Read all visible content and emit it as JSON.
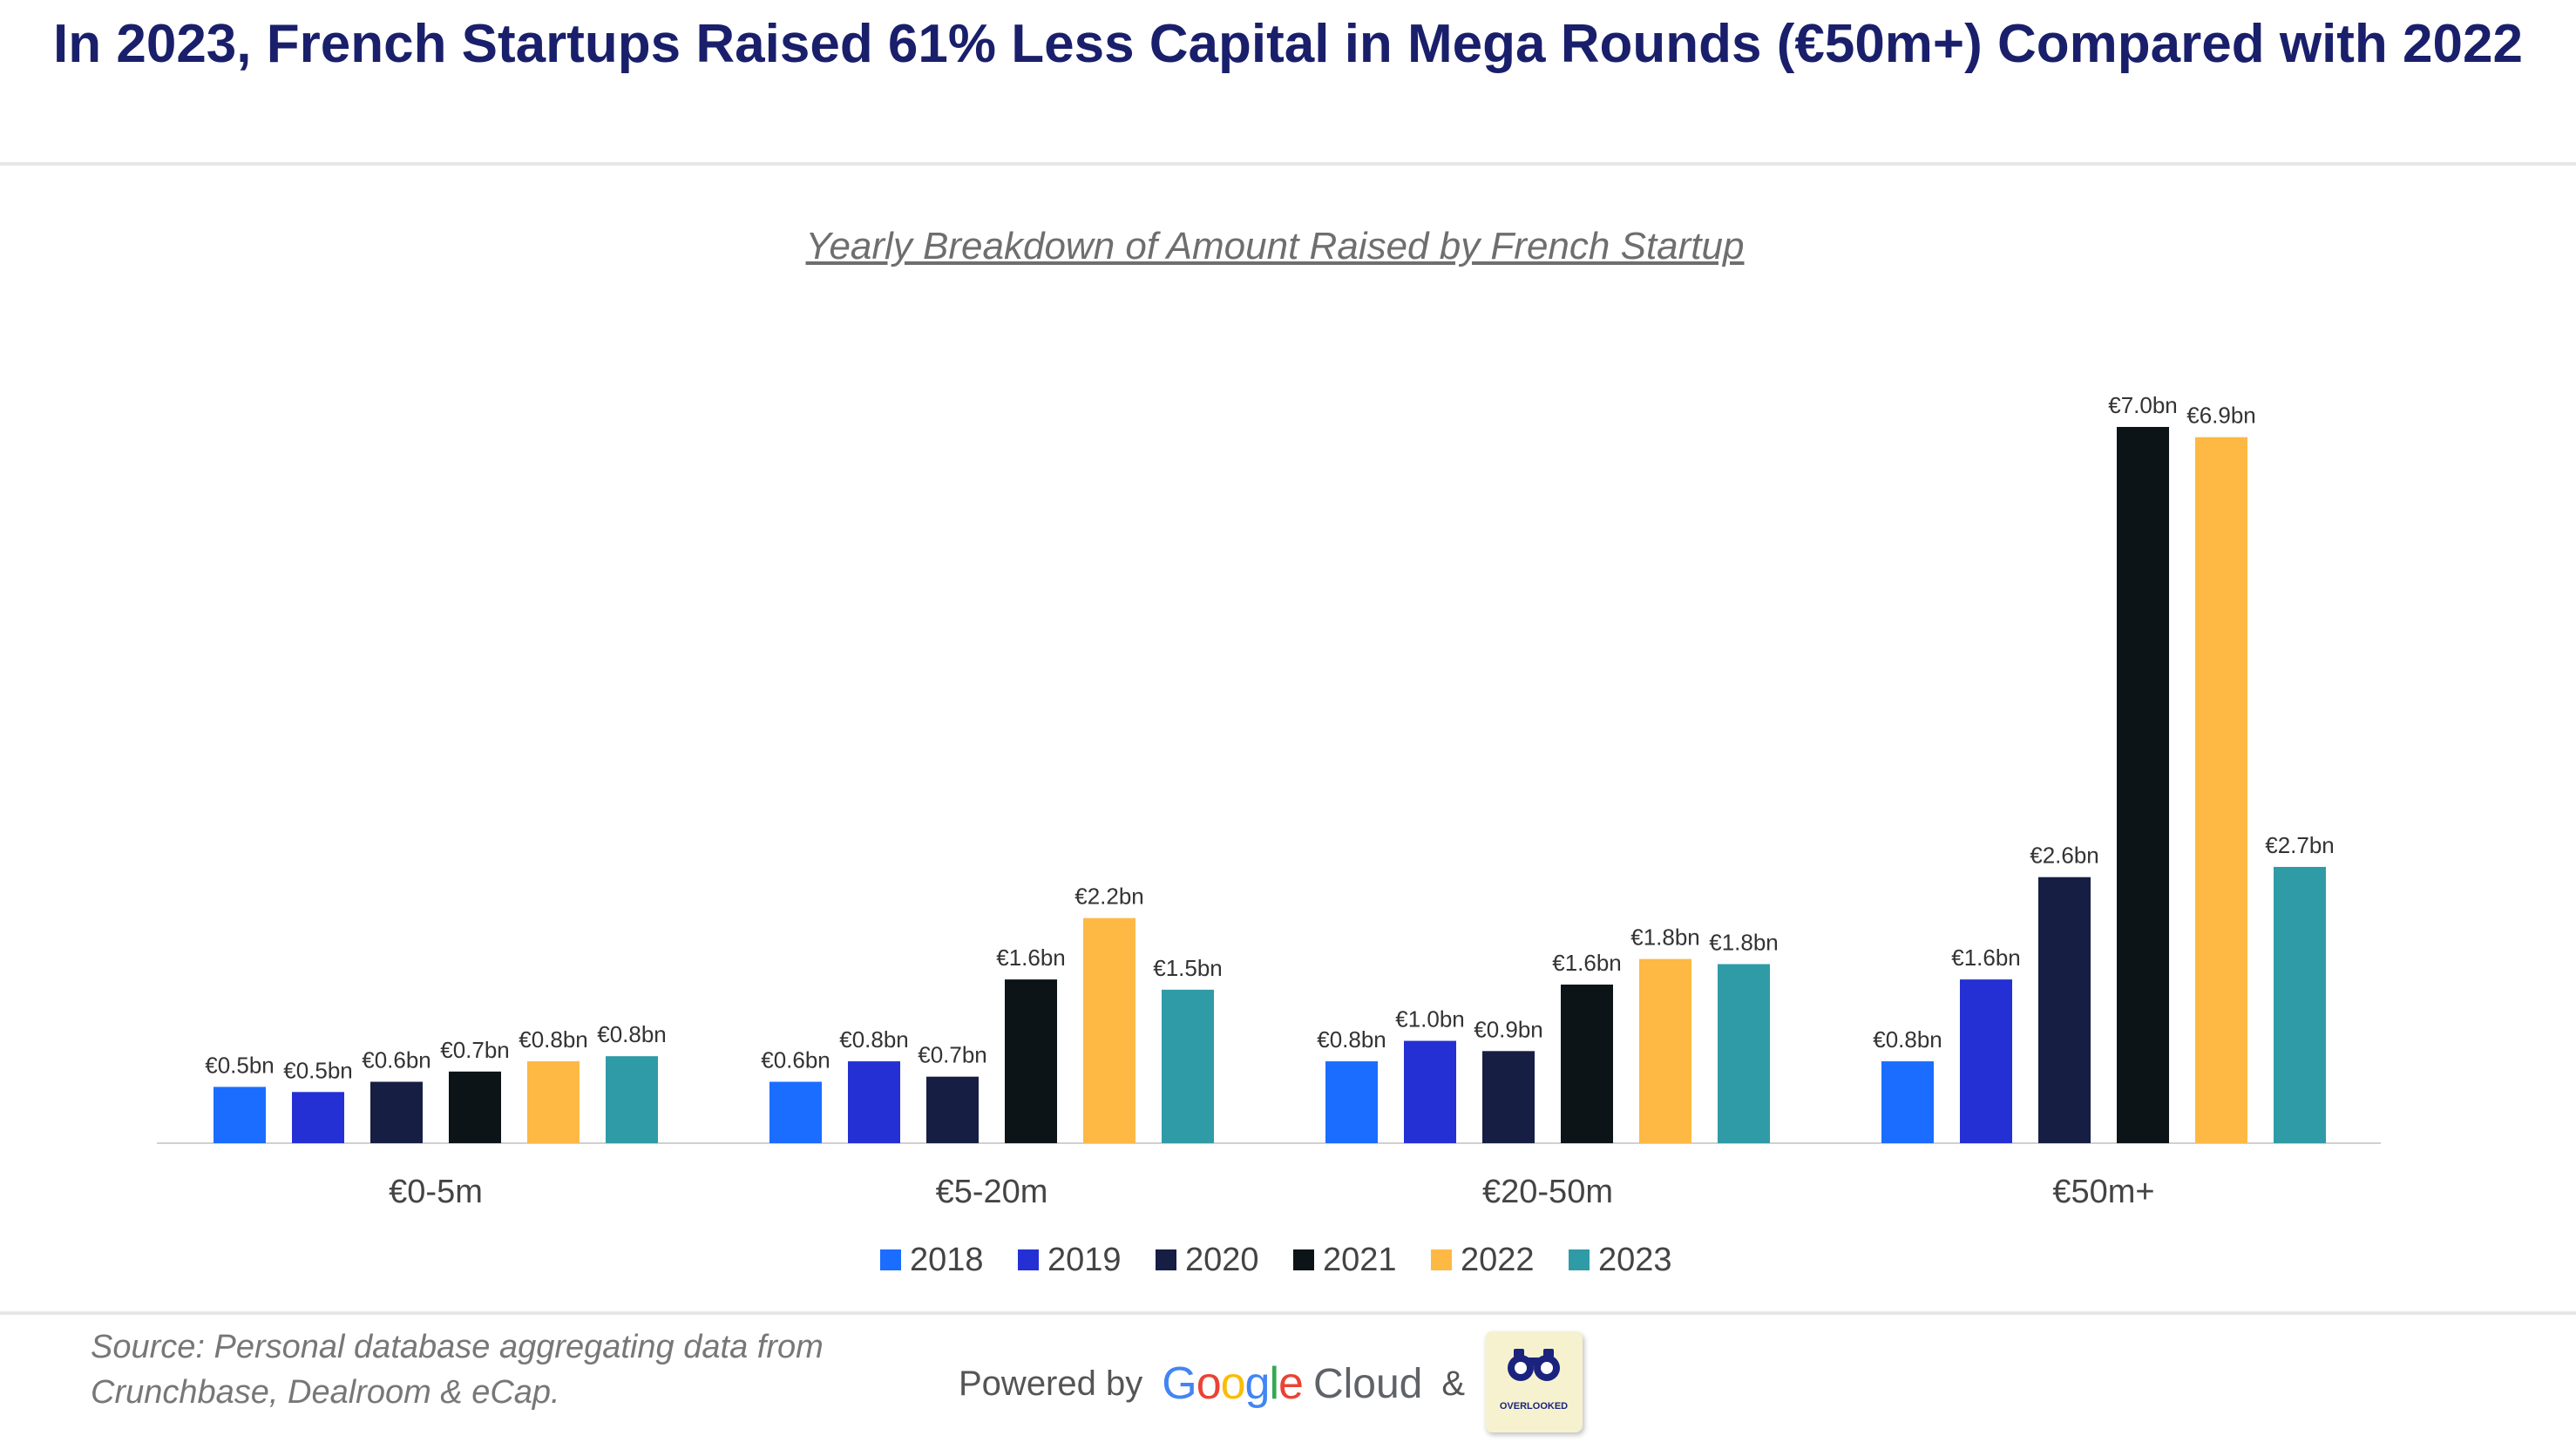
{
  "header": {
    "title": "In 2023, French Startups Raised 61% Less Capital in Mega Rounds (€50m+) Compared with 2022",
    "subtitle": "Yearly Breakdown of Amount Raised by French Startup"
  },
  "chart_data": {
    "type": "bar",
    "categories": [
      "€0-5m",
      "€5-20m",
      "€20-50m",
      "€50m+"
    ],
    "series": [
      {
        "name": "2018",
        "color": "#1a6dff",
        "values": [
          0.55,
          0.6,
          0.8,
          0.8
        ],
        "labels": [
          "€0.5bn",
          "€0.6bn",
          "€0.8bn",
          "€0.8bn"
        ]
      },
      {
        "name": "2019",
        "color": "#2430d4",
        "values": [
          0.5,
          0.8,
          1.0,
          1.6
        ],
        "labels": [
          "€0.5bn",
          "€0.8bn",
          "€1.0bn",
          "€1.6bn"
        ]
      },
      {
        "name": "2020",
        "color": "#161e44",
        "values": [
          0.6,
          0.65,
          0.9,
          2.6
        ],
        "labels": [
          "€0.6bn",
          "€0.7bn",
          "€0.9bn",
          "€2.6bn"
        ]
      },
      {
        "name": "2021",
        "color": "#0c1417",
        "values": [
          0.7,
          1.6,
          1.55,
          7.0
        ],
        "labels": [
          "€0.7bn",
          "€1.6bn",
          "€1.6bn",
          "€7.0bn"
        ]
      },
      {
        "name": "2022",
        "color": "#fdb944",
        "values": [
          0.8,
          2.2,
          1.8,
          6.9
        ],
        "labels": [
          "€0.8bn",
          "€2.2bn",
          "€1.8bn",
          "€6.9bn"
        ]
      },
      {
        "name": "2023",
        "color": "#2f9ba6",
        "values": [
          0.85,
          1.5,
          1.75,
          2.7
        ],
        "labels": [
          "€0.8bn",
          "€1.5bn",
          "€1.8bn",
          "€2.7bn"
        ]
      }
    ],
    "ylim": [
      0,
      7.5
    ],
    "grid": false,
    "legend": "bottom",
    "xlabel": "",
    "ylabel": ""
  },
  "footer": {
    "source": "Source: Personal database aggregating data from Crunchbase, Dealroom & eCap.",
    "powered_by": "Powered by",
    "google_letters": [
      {
        "ch": "G",
        "color": "#4285F4"
      },
      {
        "ch": "o",
        "color": "#EA4335"
      },
      {
        "ch": "o",
        "color": "#FBBC05"
      },
      {
        "ch": "g",
        "color": "#4285F4"
      },
      {
        "ch": "l",
        "color": "#34A853"
      },
      {
        "ch": "e",
        "color": "#EA4335"
      }
    ],
    "cloud": "Cloud",
    "ampersand": "&",
    "badge_text": "OVERLOOKED"
  }
}
